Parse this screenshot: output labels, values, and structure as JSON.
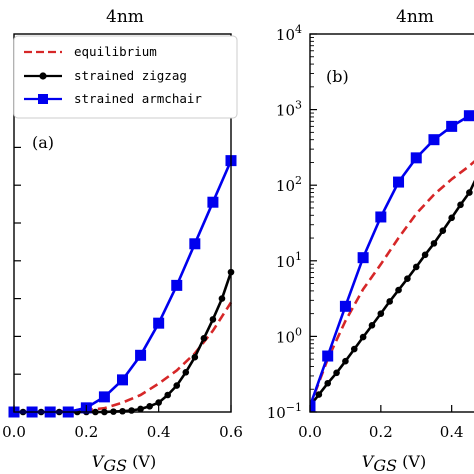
{
  "chart_data": [
    {
      "panel": "(a)",
      "type": "line",
      "title": "4nm",
      "xlabel_main": "V",
      "xlabel_sub": "GS",
      "xlabel_unit": "(V)",
      "xlim": [
        0.0,
        0.6
      ],
      "ylim": [
        0,
        1.0
      ],
      "xticks": [
        "0.0",
        "0.2",
        "0.4",
        "0.6"
      ],
      "xtick_values": [
        0.0,
        0.2,
        0.4,
        0.6
      ],
      "yticks": [
        0.1,
        0.2,
        0.3,
        0.4,
        0.5,
        0.6,
        0.7,
        0.8
      ],
      "legend": {
        "placement": "upper-left",
        "entries": [
          "equilibrium",
          "strained zigzag",
          "strained armchair"
        ]
      },
      "series": [
        {
          "name": "equilibrium",
          "color": "#d62728",
          "style": "dashed",
          "marker": "none",
          "x": [
            0.0,
            0.1,
            0.2,
            0.25,
            0.3,
            0.35,
            0.4,
            0.45,
            0.5,
            0.55,
            0.6
          ],
          "y": [
            0.0,
            0.0,
            0.005,
            0.01,
            0.025,
            0.045,
            0.075,
            0.11,
            0.155,
            0.215,
            0.29
          ]
        },
        {
          "name": "strained zigzag",
          "color": "#000000",
          "style": "solid",
          "marker": "circle",
          "x": [
            0.0,
            0.025,
            0.05,
            0.075,
            0.1,
            0.125,
            0.15,
            0.175,
            0.2,
            0.225,
            0.25,
            0.275,
            0.3,
            0.325,
            0.35,
            0.375,
            0.4,
            0.425,
            0.45,
            0.475,
            0.5,
            0.525,
            0.55,
            0.575,
            0.6
          ],
          "y": [
            0.0,
            0.0,
            0.0,
            0.0,
            0.0,
            0.0,
            0.0,
            0.0,
            0.0,
            0.0,
            0.0,
            0.001,
            0.002,
            0.004,
            0.008,
            0.015,
            0.025,
            0.045,
            0.07,
            0.105,
            0.145,
            0.195,
            0.245,
            0.3,
            0.37
          ]
        },
        {
          "name": "strained armchair",
          "color": "#0000ee",
          "style": "solid",
          "marker": "square",
          "x": [
            0.0,
            0.05,
            0.1,
            0.15,
            0.2,
            0.25,
            0.3,
            0.35,
            0.4,
            0.45,
            0.5,
            0.55,
            0.6
          ],
          "y": [
            0.0,
            0.0,
            0.0,
            0.0,
            0.011,
            0.04,
            0.085,
            0.15,
            0.235,
            0.335,
            0.445,
            0.555,
            0.665
          ]
        }
      ]
    },
    {
      "panel": "(b)",
      "type": "line",
      "title": "4nm",
      "xlabel_main": "V",
      "xlabel_sub": "GS",
      "xlabel_unit": "(V)",
      "yscale": "log",
      "xlim": [
        0.0,
        0.48
      ],
      "ylim": [
        0.1,
        10000
      ],
      "xticks": [
        "0.0",
        "0.2",
        "0.4"
      ],
      "xtick_values": [
        0.0,
        0.2,
        0.4
      ],
      "yticks": [
        {
          "value": 0.1,
          "base": "10",
          "exp": "−1"
        },
        {
          "value": 1,
          "base": "10",
          "exp": "0"
        },
        {
          "value": 10,
          "base": "10",
          "exp": "1"
        },
        {
          "value": 100,
          "base": "10",
          "exp": "2"
        },
        {
          "value": 1000,
          "base": "10",
          "exp": "3"
        },
        {
          "value": 10000,
          "base": "10",
          "exp": "4"
        }
      ],
      "series": [
        {
          "name": "equilibrium",
          "color": "#d62728",
          "style": "dashed",
          "marker": "none",
          "x": [
            0.0,
            0.05,
            0.1,
            0.15,
            0.2,
            0.25,
            0.3,
            0.35,
            0.4,
            0.45,
            0.48
          ],
          "y": [
            0.12,
            0.5,
            1.6,
            4.2,
            9.0,
            20,
            42,
            75,
            120,
            180,
            240
          ]
        },
        {
          "name": "strained zigzag",
          "color": "#000000",
          "style": "solid",
          "marker": "circle",
          "x": [
            0.0,
            0.025,
            0.05,
            0.075,
            0.1,
            0.125,
            0.15,
            0.175,
            0.2,
            0.225,
            0.25,
            0.275,
            0.3,
            0.325,
            0.35,
            0.375,
            0.4,
            0.425,
            0.45,
            0.475
          ],
          "y": [
            0.12,
            0.17,
            0.24,
            0.33,
            0.47,
            0.68,
            0.98,
            1.4,
            2.0,
            2.9,
            4.1,
            5.8,
            8.3,
            12,
            17,
            25,
            37,
            55,
            80,
            140
          ]
        },
        {
          "name": "strained armchair",
          "color": "#0000ee",
          "style": "solid",
          "marker": "square",
          "x": [
            0.0,
            0.05,
            0.1,
            0.15,
            0.2,
            0.25,
            0.3,
            0.35,
            0.4,
            0.45,
            0.48
          ],
          "y": [
            0.12,
            0.55,
            2.5,
            11,
            38,
            110,
            230,
            400,
            600,
            830,
            950
          ]
        }
      ]
    }
  ]
}
